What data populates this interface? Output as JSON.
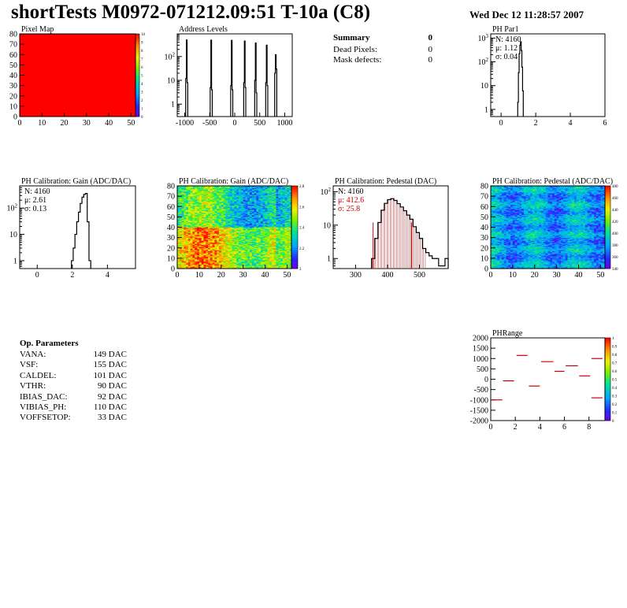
{
  "header": {
    "title": "shortTests M0972-071212.09:51 T-10a (C8)",
    "date": "Wed Dec 12 11:28:57 2007"
  },
  "summary": {
    "title": "Summary",
    "total": "0",
    "rows": [
      {
        "label": "Dead Pixels:",
        "value": "0"
      },
      {
        "label": "Mask defects:",
        "value": "0"
      }
    ]
  },
  "op_params": {
    "title": "Op. Parameters",
    "rows": [
      {
        "label": "VANA:",
        "value": "149 DAC"
      },
      {
        "label": "VSF:",
        "value": "155 DAC"
      },
      {
        "label": "CALDEL:",
        "value": "101 DAC"
      },
      {
        "label": "VTHR:",
        "value": "90 DAC"
      },
      {
        "label": "IBIAS_DAC:",
        "value": "92 DAC"
      },
      {
        "label": "VIBIAS_PH:",
        "value": "110 DAC"
      },
      {
        "label": "VOFFSETOP:",
        "value": "33 DAC"
      }
    ]
  },
  "colors": {
    "hist_line": "#000000",
    "pedestal_stats": "#cc0000",
    "pedestal_fill": "#c87070",
    "phrange_marks": "#cc0000",
    "pixelmap_fill": "#ff0000"
  },
  "chart_data": [
    {
      "id": "pixel-map",
      "type": "heatmap",
      "title": "Pixel Map",
      "xlim": [
        0,
        52
      ],
      "ylim": [
        0,
        80
      ],
      "xticks": [
        "0",
        "10",
        "20",
        "30",
        "40",
        "50"
      ],
      "yticks": [
        "0",
        "10",
        "20",
        "30",
        "40",
        "50",
        "60",
        "70",
        "80"
      ],
      "zlim": [
        0,
        10
      ],
      "zticks": [
        "0",
        "1",
        "2",
        "3",
        "4",
        "5",
        "6",
        "7",
        "8",
        "9",
        "10"
      ],
      "uniform_value": 10
    },
    {
      "id": "address-levels",
      "type": "bar",
      "title": "Address Levels",
      "xlim": [
        -1150,
        1150
      ],
      "xticks": [
        "-1000",
        "-500",
        "0",
        "500",
        "1000"
      ],
      "ylog": true,
      "ylim": [
        0.3,
        900
      ],
      "yticks": [
        "1",
        "10",
        "10^2"
      ],
      "peaks": [
        {
          "x": -960,
          "values": [
            12,
            500,
            8
          ]
        },
        {
          "x": -470,
          "values": [
            5,
            490,
            4
          ]
        },
        {
          "x": -60,
          "values": [
            6,
            480,
            4
          ]
        },
        {
          "x": 200,
          "values": [
            8,
            450,
            5
          ]
        },
        {
          "x": 420,
          "values": [
            10,
            370,
            3
          ]
        },
        {
          "x": 640,
          "values": [
            8,
            300,
            6
          ]
        },
        {
          "x": 820,
          "values": [
            20,
            120,
            30
          ]
        }
      ]
    },
    {
      "id": "ph-par1",
      "type": "bar",
      "title": "PH Par1",
      "stats": [
        "N: 4160",
        "μ: 1.12",
        "σ: 0.04"
      ],
      "xlim": [
        -0.6,
        6
      ],
      "xticks": [
        "0",
        "2",
        "4",
        "6"
      ],
      "ylog": true,
      "ylim": [
        0.5,
        1500
      ],
      "yticks": [
        "1",
        "10",
        "10^2",
        "10^3"
      ],
      "bins_x": [
        0.98,
        1.02,
        1.06,
        1.1,
        1.14,
        1.18,
        1.22,
        1.26
      ],
      "bins_y": [
        2,
        35,
        220,
        500,
        700,
        300,
        60,
        6
      ]
    },
    {
      "id": "ph-gain-hist",
      "type": "bar",
      "title": "PH Calibration: Gain (ADC/DAC)",
      "stats": [
        "N: 4160",
        "μ: 2.61",
        "σ: 0.13"
      ],
      "xlim": [
        -1,
        5.6
      ],
      "xticks": [
        "0",
        "2",
        "4"
      ],
      "ylog": true,
      "ylim": [
        0.5,
        700
      ],
      "yticks": [
        "1",
        "10",
        "10^2"
      ],
      "bins_x": [
        2.0,
        2.1,
        2.2,
        2.3,
        2.4,
        2.5,
        2.6,
        2.7,
        2.8,
        2.9,
        3.0
      ],
      "bins_y": [
        1,
        3,
        10,
        30,
        70,
        150,
        260,
        330,
        360,
        30,
        1
      ]
    },
    {
      "id": "ph-gain-map",
      "type": "heatmap",
      "title": "PH Calibration: Gain (ADC/DAC)",
      "xlim": [
        0,
        52
      ],
      "ylim": [
        0,
        80
      ],
      "xticks": [
        "0",
        "10",
        "20",
        "30",
        "40",
        "50"
      ],
      "yticks": [
        "0",
        "10",
        "20",
        "30",
        "40",
        "50",
        "60",
        "70",
        "80"
      ],
      "zlim": [
        1.9,
        2.9
      ],
      "zticks": [
        "2",
        "2.2",
        "2.4",
        "2.6",
        "2.8"
      ]
    },
    {
      "id": "ph-pedestal-hist",
      "type": "bar",
      "title": "PH Calibration: Pedestal (DAC)",
      "stats": [
        "N: 4160",
        "μ: 412.6",
        "σ: 25.8"
      ],
      "xlim": [
        230,
        590
      ],
      "xticks": [
        "300",
        "400",
        "500"
      ],
      "ylog": true,
      "ylim": [
        0.5,
        150
      ],
      "yticks": [
        "1",
        "10",
        "10^2"
      ],
      "fit_range": [
        355,
        475
      ],
      "bins_x": [
        355,
        365,
        375,
        385,
        395,
        405,
        415,
        425,
        435,
        445,
        455,
        465,
        475,
        485,
        495,
        505,
        515,
        525,
        535,
        545,
        555,
        565,
        575,
        585
      ],
      "bins_y": [
        1,
        4,
        12,
        28,
        45,
        58,
        62,
        55,
        44,
        35,
        27,
        20,
        15,
        9,
        6,
        4,
        2,
        1.5,
        1.2,
        1,
        1,
        0.6,
        0.6,
        1
      ]
    },
    {
      "id": "ph-pedestal-map",
      "type": "heatmap",
      "title": "PH Calibration: Pedestal (ADC/DAC)",
      "xlim": [
        0,
        52
      ],
      "ylim": [
        0,
        80
      ],
      "xticks": [
        "0",
        "10",
        "20",
        "30",
        "40",
        "50"
      ],
      "yticks": [
        "0",
        "10",
        "20",
        "30",
        "40",
        "50",
        "60",
        "70",
        "80"
      ],
      "zlim": [
        330,
        490
      ],
      "zticks": [
        "340",
        "360",
        "380",
        "400",
        "420",
        "440",
        "460",
        "480"
      ]
    },
    {
      "id": "ph-range",
      "type": "scatter",
      "title": "PHRange",
      "xlim": [
        0,
        9.3
      ],
      "xticks": [
        "0",
        "2",
        "4",
        "6",
        "8"
      ],
      "ylim": [
        -2000,
        2000
      ],
      "yticks": [
        "-2000",
        "-1500",
        "-1000",
        "-500",
        "0",
        "500",
        "1000",
        "1500",
        "2000"
      ],
      "zlim": [
        0,
        1
      ],
      "zticks": [
        "0",
        "0.1",
        "0.2",
        "0.3",
        "0.4",
        "0.5",
        "0.6",
        "0.7",
        "0.8",
        "0.9",
        "1"
      ],
      "segments": [
        {
          "x0": 0,
          "x1": 0.95,
          "y": -1000
        },
        {
          "x0": 1.0,
          "x1": 1.9,
          "y": -80
        },
        {
          "x0": 2.1,
          "x1": 3.0,
          "y": 1150
        },
        {
          "x0": 3.1,
          "x1": 4.0,
          "y": -330
        },
        {
          "x0": 4.1,
          "x1": 5.1,
          "y": 850
        },
        {
          "x0": 5.2,
          "x1": 6.0,
          "y": 380
        },
        {
          "x0": 6.1,
          "x1": 7.1,
          "y": 650
        },
        {
          "x0": 7.2,
          "x1": 8.1,
          "y": 160
        },
        {
          "x0": 8.2,
          "x1": 9.1,
          "y": 1000
        },
        {
          "x0": 8.2,
          "x1": 9.1,
          "y": -900
        }
      ]
    }
  ]
}
